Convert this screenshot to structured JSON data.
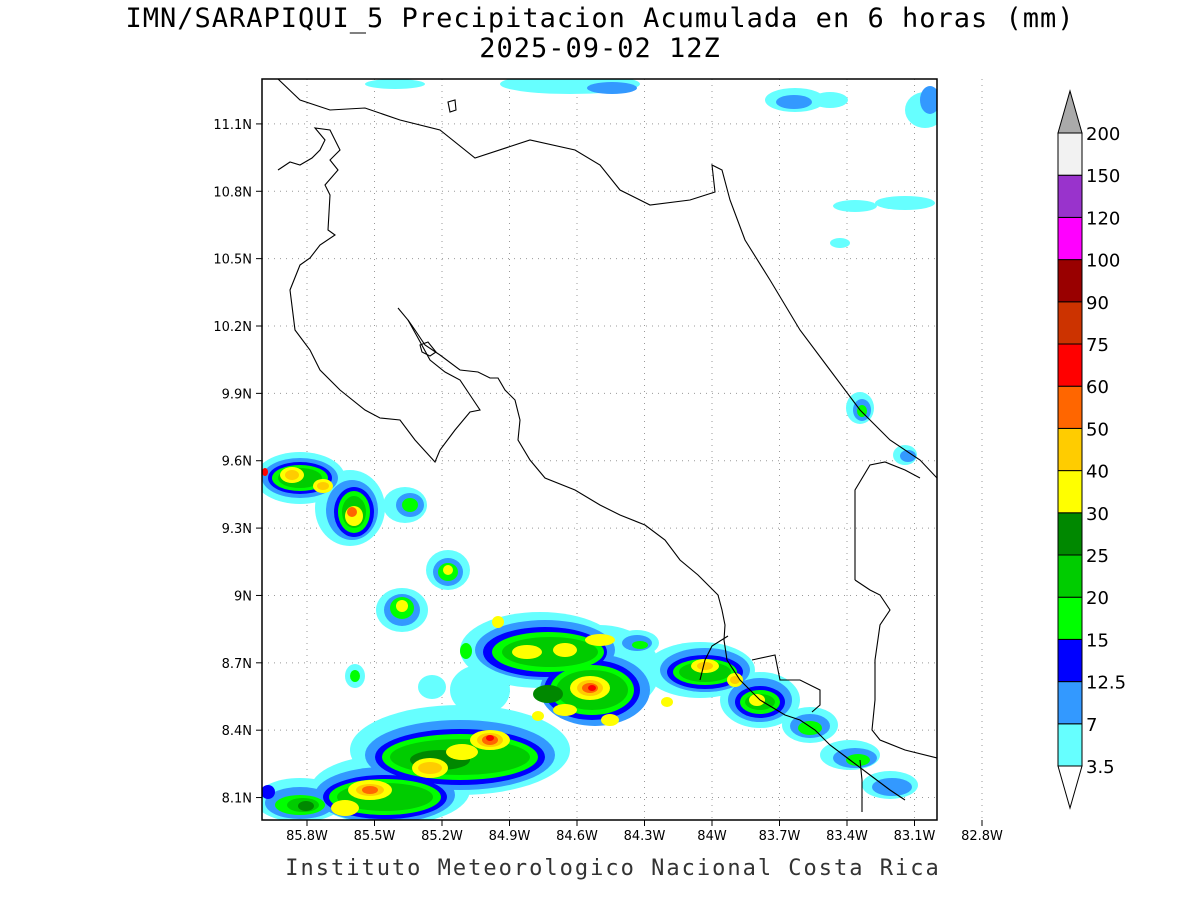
{
  "title_line1": "IMN/SARAPIQUI_5 Precipitacion Acumulada en 6 horas (mm)",
  "title_line2": "2025-09-02 12Z",
  "footer": "Instituto Meteorologico Nacional Costa Rica",
  "map": {
    "lon_range": [
      -86.0,
      -83.0
    ],
    "lat_range": [
      8.0,
      11.3
    ],
    "lat_ticks": [
      {
        "value": 8.1,
        "label": "8.1N"
      },
      {
        "value": 8.4,
        "label": "8.4N"
      },
      {
        "value": 8.7,
        "label": "8.7N"
      },
      {
        "value": 9.0,
        "label": "9N"
      },
      {
        "value": 9.3,
        "label": "9.3N"
      },
      {
        "value": 9.6,
        "label": "9.6N"
      },
      {
        "value": 9.9,
        "label": "9.9N"
      },
      {
        "value": 10.2,
        "label": "10.2N"
      },
      {
        "value": 10.5,
        "label": "10.5N"
      },
      {
        "value": 10.8,
        "label": "10.8N"
      },
      {
        "value": 11.1,
        "label": "11.1N"
      }
    ],
    "lon_ticks": [
      {
        "value": -85.8,
        "label": "85.8W"
      },
      {
        "value": -85.5,
        "label": "85.5W"
      },
      {
        "value": -85.2,
        "label": "85.2W"
      },
      {
        "value": -84.9,
        "label": "84.9W"
      },
      {
        "value": -84.6,
        "label": "84.6W"
      },
      {
        "value": -84.3,
        "label": "84.3W"
      },
      {
        "value": -84.0,
        "label": "84W"
      },
      {
        "value": -83.7,
        "label": "83.7W"
      },
      {
        "value": -83.4,
        "label": "83.4W"
      },
      {
        "value": -83.1,
        "label": "83.1W"
      },
      {
        "value": -82.8,
        "label": "82.8W"
      }
    ],
    "grid": "dotted"
  },
  "colorbar": {
    "labels": [
      "3.5",
      "7",
      "12.5",
      "15",
      "20",
      "25",
      "30",
      "40",
      "50",
      "60",
      "75",
      "90",
      "100",
      "120",
      "150",
      "200"
    ],
    "colors": [
      "#ffffff",
      "#66ffff",
      "#3399ff",
      "#0000ff",
      "#00ff00",
      "#00cc00",
      "#008800",
      "#ffff00",
      "#ffcc00",
      "#ff6600",
      "#ff0000",
      "#cc3300",
      "#990000",
      "#ff00ff",
      "#9933cc",
      "#f2f2f2",
      "#aaaaaa"
    ]
  }
}
